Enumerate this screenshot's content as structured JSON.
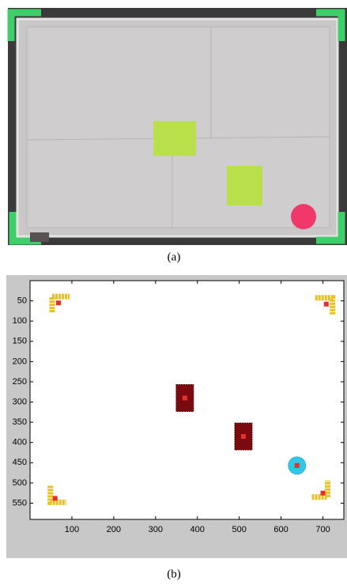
{
  "figure_a": {
    "caption": "(a)"
  },
  "chart_data": {
    "type": "image-plot",
    "caption": "(b)",
    "xlim": [
      0,
      750
    ],
    "ylim": [
      0,
      590
    ],
    "y_inverted": true,
    "xticks": [
      100,
      200,
      300,
      400,
      500,
      600,
      700
    ],
    "yticks": [
      50,
      100,
      150,
      200,
      250,
      300,
      350,
      400,
      450,
      500,
      550
    ],
    "x": [
      68,
      708,
      60,
      700,
      370,
      510,
      638
    ],
    "values": [
      55,
      58,
      538,
      525,
      290,
      385,
      457
    ],
    "color": "#e8302a",
    "blob_colors": [
      "#e8c020",
      "#e8c020",
      "#e8c020",
      "#e8c020",
      "#7a0a10",
      "#7a0a10",
      "#30c8e8"
    ]
  }
}
